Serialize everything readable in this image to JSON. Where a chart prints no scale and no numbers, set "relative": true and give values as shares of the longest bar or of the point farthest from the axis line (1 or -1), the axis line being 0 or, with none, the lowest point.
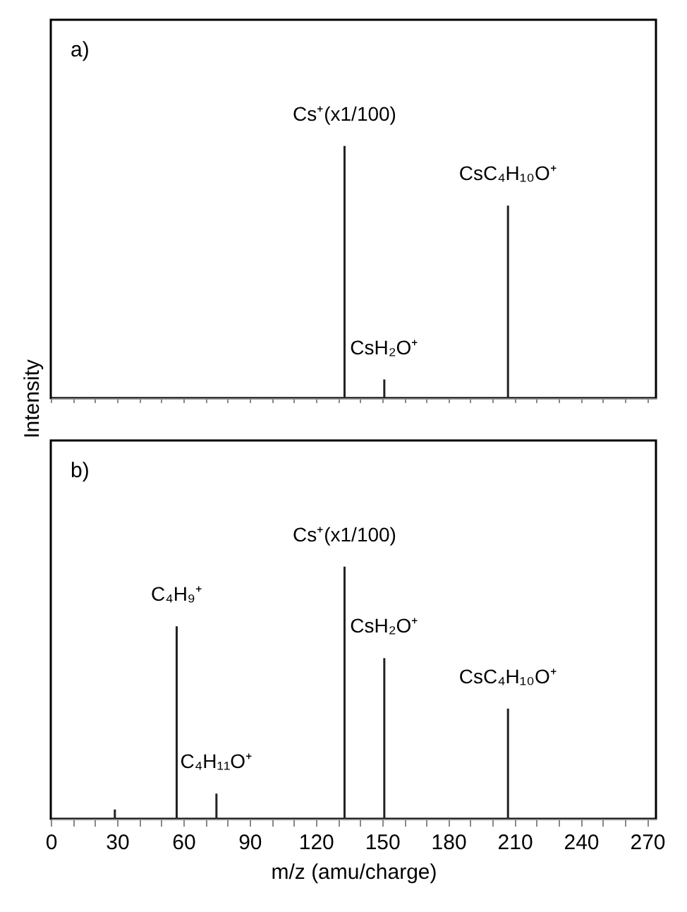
{
  "chart_data": [
    {
      "type": "bar",
      "relative": true,
      "ylabel": "Intensity",
      "x": [
        133,
        151,
        207
      ],
      "series": [
        {
          "color": "#222222",
          "values": [
            1,
            0.074,
            0.763
          ]
        }
      ],
      "xlim": [
        0,
        274
      ],
      "xticks": [
        0,
        {
          "value": 10,
          "label": null
        },
        {
          "value": 20,
          "label": null
        },
        30,
        {
          "value": 40,
          "label": null
        },
        {
          "value": 50,
          "label": null
        },
        60,
        {
          "value": 70,
          "label": null
        },
        {
          "value": 80,
          "label": null
        },
        90,
        {
          "value": 100,
          "label": null
        },
        {
          "value": 110,
          "label": null
        },
        120,
        {
          "value": 130,
          "label": null
        },
        {
          "value": 140,
          "label": null
        },
        150,
        {
          "value": 160,
          "label": null
        },
        {
          "value": 170,
          "label": null
        },
        180,
        {
          "value": 190,
          "label": null
        },
        {
          "value": 200,
          "label": null
        },
        210,
        {
          "value": 220,
          "label": null
        },
        {
          "value": 230,
          "label": null
        },
        240,
        {
          "value": 250,
          "label": null
        },
        {
          "value": 260,
          "label": null
        },
        270
      ],
      "tick_labels": false,
      "grid": false,
      "legend": false,
      "annotations": [
        "a)",
        {
          "text": "Cs⁺(x1/100)",
          "x": 133,
          "y": 1
        },
        {
          "text": "CsC₄H₁₀O⁺",
          "x": 207,
          "y": 0.763
        },
        {
          "text": "CsH₂O⁺",
          "x": 151,
          "y": 0.074
        }
      ]
    },
    {
      "type": "bar",
      "relative": true,
      "xlabel": "m/z (amu/charge)",
      "x": [
        29,
        57,
        75,
        133,
        151,
        207
      ],
      "series": [
        {
          "color": "#222222",
          "values": [
            0.037,
            0.763,
            0.1,
            1,
            0.637,
            0.437
          ]
        }
      ],
      "xlim": [
        0,
        274
      ],
      "xticks": [
        0,
        {
          "value": 10,
          "label": null
        },
        {
          "value": 20,
          "label": null
        },
        30,
        {
          "value": 40,
          "label": null
        },
        {
          "value": 50,
          "label": null
        },
        60,
        {
          "value": 70,
          "label": null
        },
        {
          "value": 80,
          "label": null
        },
        90,
        {
          "value": 100,
          "label": null
        },
        {
          "value": 110,
          "label": null
        },
        120,
        {
          "value": 130,
          "label": null
        },
        {
          "value": 140,
          "label": null
        },
        150,
        {
          "value": 160,
          "label": null
        },
        {
          "value": 170,
          "label": null
        },
        180,
        {
          "value": 190,
          "label": null
        },
        {
          "value": 200,
          "label": null
        },
        210,
        {
          "value": 220,
          "label": null
        },
        {
          "value": 230,
          "label": null
        },
        240,
        {
          "value": 250,
          "label": null
        },
        {
          "value": 260,
          "label": null
        },
        270
      ],
      "tick_labels": "x",
      "grid": false,
      "legend": false,
      "annotations": [
        "b)",
        {
          "text": "Cs⁺(x1/100)",
          "x": 133,
          "y": 1
        },
        {
          "text": "C₄H₉⁺",
          "x": 57,
          "y": 0.763
        },
        {
          "text": "CsH₂O⁺",
          "x": 151,
          "y": 0.637
        },
        {
          "text": "CsC₄H₁₀O⁺",
          "x": 207,
          "y": 0.437
        },
        {
          "text": "C₄H₁₁O⁺",
          "x": 75,
          "y": 0.1
        }
      ]
    }
  ]
}
